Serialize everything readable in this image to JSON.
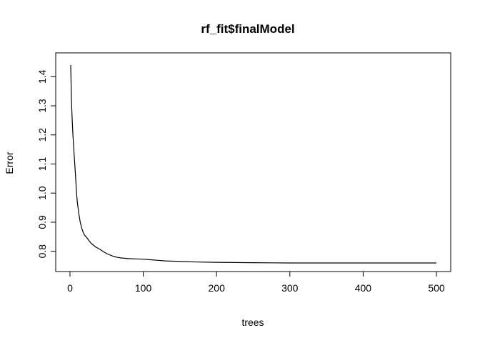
{
  "chart_data": {
    "type": "line",
    "title": "rf_fit$finalModel",
    "xlabel": "trees",
    "ylabel": "Error",
    "xlim": [
      1,
      500
    ],
    "ylim": [
      0.755,
      1.445
    ],
    "x_ticks": [
      0,
      100,
      200,
      300,
      400,
      500
    ],
    "x_tick_labels": [
      "0",
      "100",
      "200",
      "300",
      "400",
      "500"
    ],
    "y_ticks": [
      0.8,
      0.9,
      1.0,
      1.1,
      1.2,
      1.3,
      1.4
    ],
    "y_tick_labels": [
      "0.8",
      "0.9",
      "1.0",
      "1.1",
      "1.2",
      "1.3",
      "1.4"
    ],
    "grid": false,
    "series": [
      {
        "color": "#000000",
        "x": [
          1,
          2,
          3,
          4,
          5,
          6,
          7,
          8,
          9,
          10,
          12,
          14,
          16,
          18,
          20,
          22,
          25,
          28,
          30,
          35,
          40,
          45,
          50,
          55,
          60,
          65,
          70,
          80,
          90,
          100,
          110,
          120,
          130,
          140,
          150,
          175,
          200,
          250,
          300,
          350,
          400,
          450,
          500
        ],
        "y": [
          1.44,
          1.32,
          1.25,
          1.2,
          1.16,
          1.12,
          1.08,
          1.04,
          1.0,
          0.97,
          0.93,
          0.9,
          0.88,
          0.865,
          0.855,
          0.85,
          0.84,
          0.83,
          0.825,
          0.815,
          0.808,
          0.8,
          0.792,
          0.787,
          0.782,
          0.779,
          0.777,
          0.775,
          0.774,
          0.773,
          0.771,
          0.769,
          0.767,
          0.766,
          0.765,
          0.763,
          0.762,
          0.761,
          0.76,
          0.76,
          0.76,
          0.76,
          0.76
        ]
      }
    ]
  }
}
